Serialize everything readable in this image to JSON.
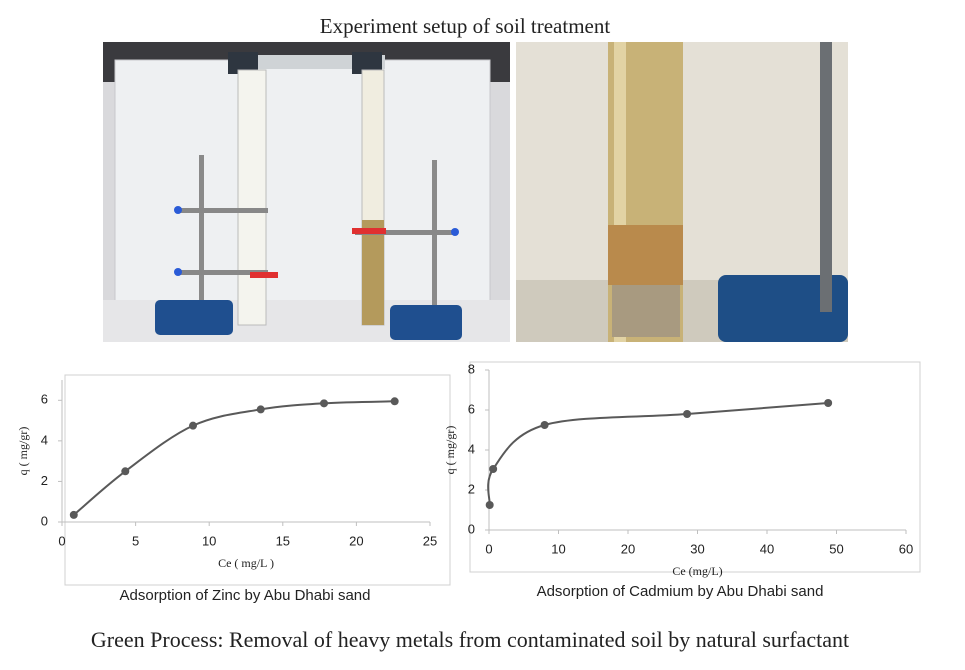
{
  "title": "Experiment setup of soil treatment",
  "caption": "Green Process: Removal of heavy metals from contaminated soil by natural surfactant",
  "chart_data": [
    {
      "type": "line",
      "caption": "Adsorption of Zinc by Abu Dhabi sand",
      "xlabel": "Ce ( mg/L )",
      "ylabel": "q ( mg/gr)",
      "x": [
        0.8,
        4.3,
        8.9,
        13.5,
        17.8,
        22.6
      ],
      "series": [
        {
          "color": "#595959",
          "values": [
            0.35,
            2.5,
            4.75,
            5.55,
            5.85,
            5.95
          ]
        }
      ],
      "xlim": [
        0,
        25
      ],
      "xticks": [
        0,
        5,
        10,
        15,
        20,
        25
      ],
      "ylim": [
        0,
        7
      ],
      "yticks": [
        0,
        2,
        4,
        6
      ],
      "smooth": true
    },
    {
      "type": "line",
      "caption": "Adsorption of Cadmium by Abu Dhabi sand",
      "xlabel": "Ce (mg/L)",
      "ylabel": "q ( mg/gr)",
      "x": [
        0.1,
        0.6,
        8,
        28.5,
        48.8
      ],
      "series": [
        {
          "color": "#595959",
          "values": [
            1.25,
            3.05,
            5.25,
            5.8,
            6.35
          ]
        }
      ],
      "xlim": [
        0,
        60
      ],
      "xticks": [
        0,
        10,
        20,
        30,
        40,
        50,
        60
      ],
      "ylim": [
        0,
        8
      ],
      "yticks": [
        0,
        2,
        4,
        6,
        8
      ],
      "smooth": true
    }
  ]
}
